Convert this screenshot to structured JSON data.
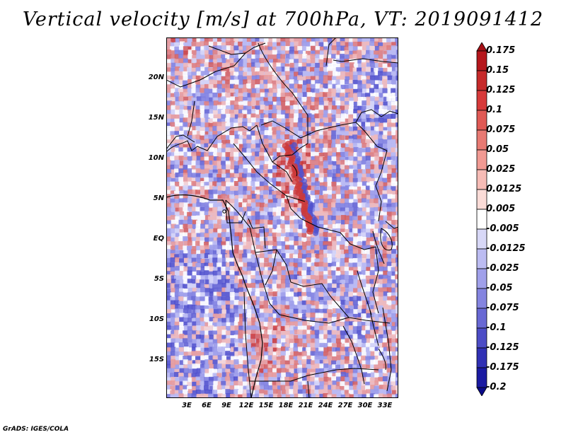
{
  "title": "Vertical velocity [m/s] at 700hPa, VT: 2019091412",
  "footer": "GrADS: IGES/COLA",
  "map": {
    "variable": "Vertical velocity",
    "units": "m/s",
    "level": "700hPa",
    "valid_time": "2019091412",
    "lat_labels": [
      "20N",
      "15N",
      "10N",
      "5N",
      "EQ",
      "5S",
      "10S",
      "15S"
    ],
    "lon_labels": [
      "3E",
      "6E",
      "9E",
      "12E",
      "15E",
      "18E",
      "21E",
      "24E",
      "27E",
      "30E",
      "33E"
    ]
  },
  "colorbar": {
    "labels": [
      "0.175",
      "0.15",
      "0.125",
      "0.1",
      "0.075",
      "0.05",
      "0.025",
      "0.0125",
      "0.005",
      "-0.005",
      "-0.0125",
      "-0.025",
      "-0.05",
      "-0.075",
      "-0.1",
      "-0.125",
      "-0.175",
      "-0.2"
    ],
    "colors": [
      "#a50f15",
      "#b5171c",
      "#c62a2a",
      "#d73a3a",
      "#e05a55",
      "#e87a73",
      "#f19a93",
      "#f7bcb6",
      "#fbdcd8",
      "#ffffff",
      "#d8d8f7",
      "#bcbcf2",
      "#a0a0ea",
      "#8484e0",
      "#6868d4",
      "#4c4cc6",
      "#3030b4",
      "#1a1aa2",
      "#0a0a8a"
    ]
  },
  "palette": {
    "blue_base": "#a8a8f0",
    "blue_deep": "#5050cc",
    "red_base": "#f0a8a8",
    "red_deep": "#cc3838",
    "border": "#000000"
  }
}
